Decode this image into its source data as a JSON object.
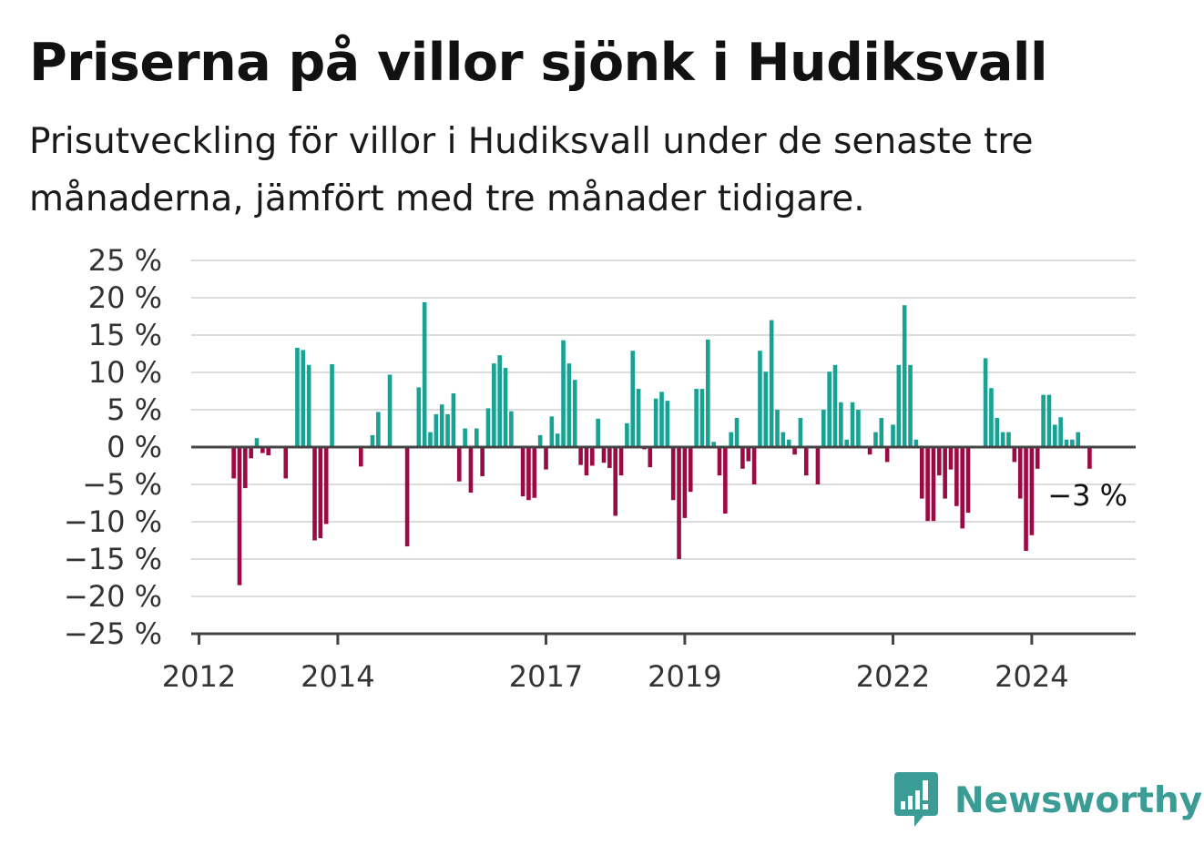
{
  "title": "Priserna på villor sjönk i Hudiksvall",
  "subtitle": "Prisutveckling för villor i Hudiksvall under de senaste tre månaderna, jämfört med tre månader tidigare.",
  "brand": {
    "name": "Newsworthy",
    "color": "#3a9c95"
  },
  "colors": {
    "positive": "#17a293",
    "negative": "#9c0a45",
    "grid": "#dcdcdc",
    "axis": "#444444"
  },
  "chart_data": {
    "type": "bar",
    "title": "Priserna på villor sjönk i Hudiksvall",
    "xlabel": "",
    "ylabel": "",
    "ylim": [
      -25,
      25
    ],
    "y_ticks": [
      25,
      20,
      15,
      10,
      5,
      0,
      -5,
      -10,
      -15,
      -20,
      -25
    ],
    "y_tick_labels": [
      "25 %",
      "20 %",
      "15 %",
      "10 %",
      "5 %",
      "0 %",
      "−5 %",
      "−10 %",
      "−15 %",
      "−20 %",
      "−25 %"
    ],
    "x_ticks": [
      "2012-01",
      "2014-01",
      "2017-01",
      "2019-01",
      "2022-01",
      "2024-01"
    ],
    "x_tick_labels": [
      "2012",
      "2014",
      "2017",
      "2019",
      "2022",
      "2024"
    ],
    "x_start": "2012-01",
    "grid": true,
    "last_value_label": "−3 %",
    "values": [
      null,
      null,
      null,
      null,
      null,
      null,
      -4.2,
      -18.5,
      -5.5,
      -1.5,
      1.2,
      -0.8,
      -1.1,
      0.0,
      0.0,
      -4.2,
      0.0,
      13.3,
      13.0,
      11.0,
      -12.5,
      -12.2,
      -10.3,
      11.1,
      0.0,
      0.0,
      0.0,
      0.0,
      -2.6,
      0.0,
      1.6,
      4.7,
      0.0,
      9.7,
      0.0,
      0.0,
      -13.3,
      0.0,
      8.0,
      19.4,
      2.0,
      4.4,
      5.7,
      4.4,
      7.2,
      -4.6,
      2.5,
      -6.1,
      2.5,
      -3.9,
      5.2,
      11.2,
      12.3,
      10.6,
      4.8,
      0.0,
      -6.6,
      -7.1,
      -6.8,
      1.6,
      -3.0,
      4.1,
      1.8,
      14.3,
      11.2,
      9.0,
      -2.4,
      -3.8,
      -2.5,
      3.8,
      -2.1,
      -2.8,
      -9.2,
      -3.8,
      3.2,
      12.9,
      7.8,
      -0.3,
      -2.7,
      6.5,
      7.4,
      6.2,
      -7.1,
      -15.0,
      -9.5,
      -6.0,
      7.8,
      7.8,
      14.4,
      0.7,
      -3.8,
      -8.9,
      2.0,
      3.9,
      -2.9,
      -1.9,
      -5.0,
      12.9,
      10.1,
      17.0,
      5.0,
      2.0,
      1.0,
      -1.0,
      3.9,
      -3.8,
      0.0,
      -5.0,
      5.0,
      10.1,
      11.0,
      6.0,
      1.0,
      6.0,
      5.0,
      0.0,
      -1.0,
      2.0,
      3.9,
      -2.0,
      3.0,
      11.0,
      19.0,
      11.0,
      1.0,
      -6.9,
      -9.9,
      -9.9,
      -3.8,
      -6.9,
      -3.0,
      -7.9,
      -10.9,
      -8.8,
      0.0,
      0.0,
      11.9,
      7.9,
      3.9,
      2.0,
      2.0,
      -2.0,
      -6.9,
      -13.9,
      -11.8,
      -2.9,
      7.0,
      7.0,
      3.0,
      4.0,
      1.0,
      1.0,
      2.0,
      0.0,
      -2.9
    ]
  }
}
